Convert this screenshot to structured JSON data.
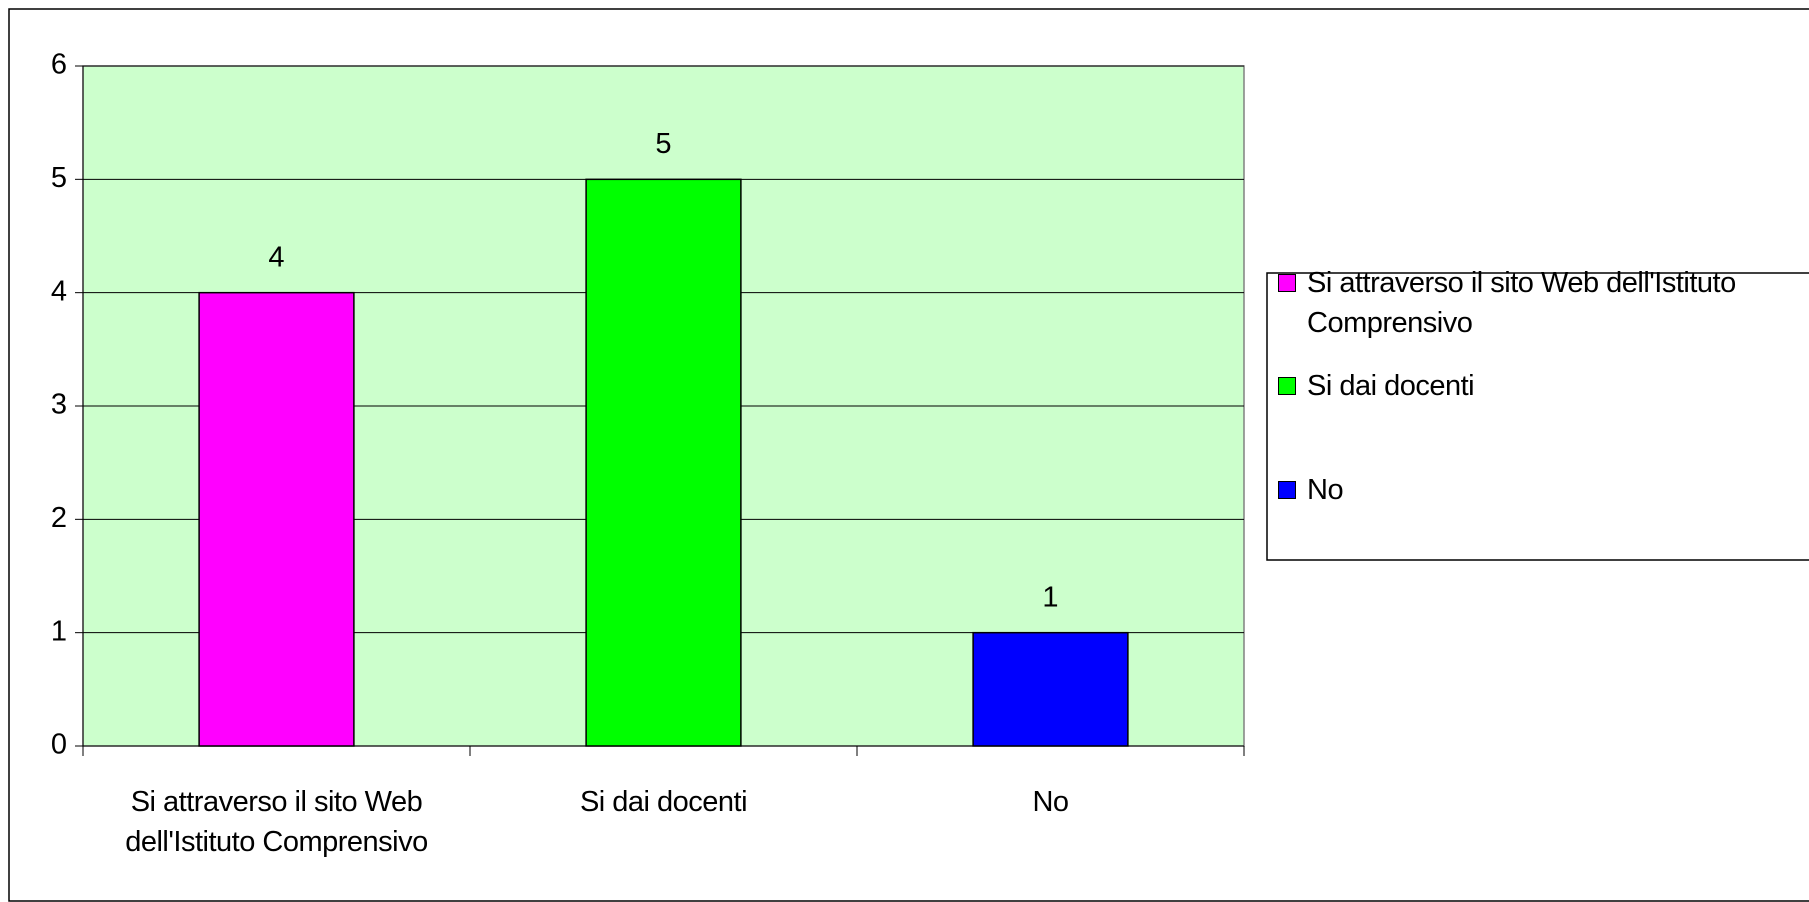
{
  "chart_data": {
    "type": "bar",
    "categories": [
      "Si attraverso il sito Web dell'Istituto Comprensivo",
      "Si dai docenti",
      "No"
    ],
    "values": [
      4,
      5,
      1
    ],
    "colors": [
      "#ff00ff",
      "#00ff00",
      "#0000ff"
    ],
    "ylim": [
      0,
      6
    ],
    "yticks": [
      0,
      1,
      2,
      3,
      4,
      5,
      6
    ],
    "grid": true,
    "legend": "right"
  }
}
